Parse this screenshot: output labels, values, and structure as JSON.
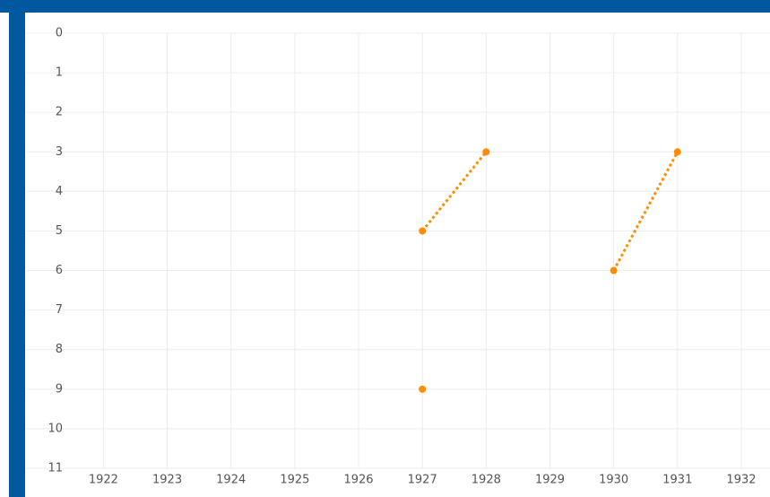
{
  "chart_data": {
    "type": "line",
    "series": [
      {
        "color": "#ff8c00",
        "x": [
          1927,
          null,
          1927,
          1928,
          null,
          1930,
          1931
        ],
        "values": [
          9,
          null,
          5,
          3,
          null,
          6,
          3
        ]
      }
    ],
    "xlim": [
      1920.8,
      1932.45
    ],
    "xticks": [
      1922,
      1923,
      1924,
      1925,
      1926,
      1927,
      1928,
      1929,
      1930,
      1931,
      1932
    ],
    "ylim": [
      11,
      0
    ],
    "yticks": [
      0,
      1,
      2,
      3,
      4,
      5,
      6,
      7,
      8,
      9,
      10,
      11
    ],
    "grid": true,
    "line_style": "dotted"
  }
}
